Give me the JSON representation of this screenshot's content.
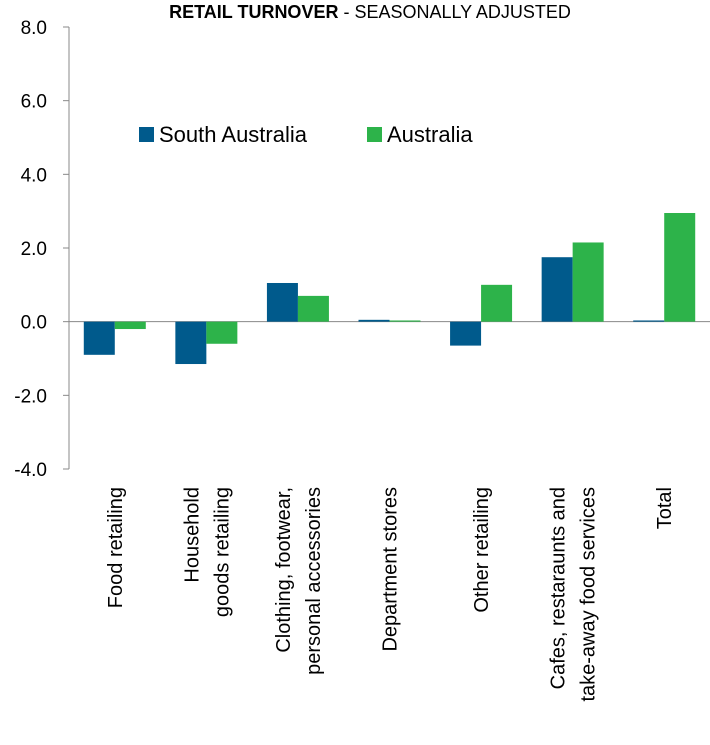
{
  "chart_data": {
    "type": "bar",
    "title_bold": "RETAIL TURNOVER",
    "title_rest": " - SEASONALLY ADJUSTED",
    "categories": [
      [
        "Food retailing"
      ],
      [
        "Household",
        "goods retailing"
      ],
      [
        "Clothing, footwear,",
        "personal accessories"
      ],
      [
        "Department stores"
      ],
      [
        "Other retailing"
      ],
      [
        "Cafes, restaraunts and",
        "take-away food services"
      ],
      [
        "Total"
      ]
    ],
    "series": [
      {
        "name": "South Australia",
        "color": "#005a8c",
        "values": [
          -0.9,
          -1.15,
          1.05,
          0.05,
          -0.65,
          1.75,
          0.0
        ]
      },
      {
        "name": "Australia",
        "color": "#2db34a",
        "values": [
          -0.2,
          -0.6,
          0.7,
          0.0,
          1.0,
          2.15,
          2.95
        ]
      }
    ],
    "ylim": [
      -4.0,
      8.0
    ],
    "yticks": [
      "8.0",
      "6.0",
      "4.0",
      "2.0",
      "0.0",
      "-2.0",
      "-4.0"
    ],
    "ytick_values": [
      8,
      6,
      4,
      2,
      0,
      -2,
      -4
    ],
    "xlabel": "",
    "ylabel": "",
    "grid": false,
    "legend_position": "top-left-inside"
  }
}
